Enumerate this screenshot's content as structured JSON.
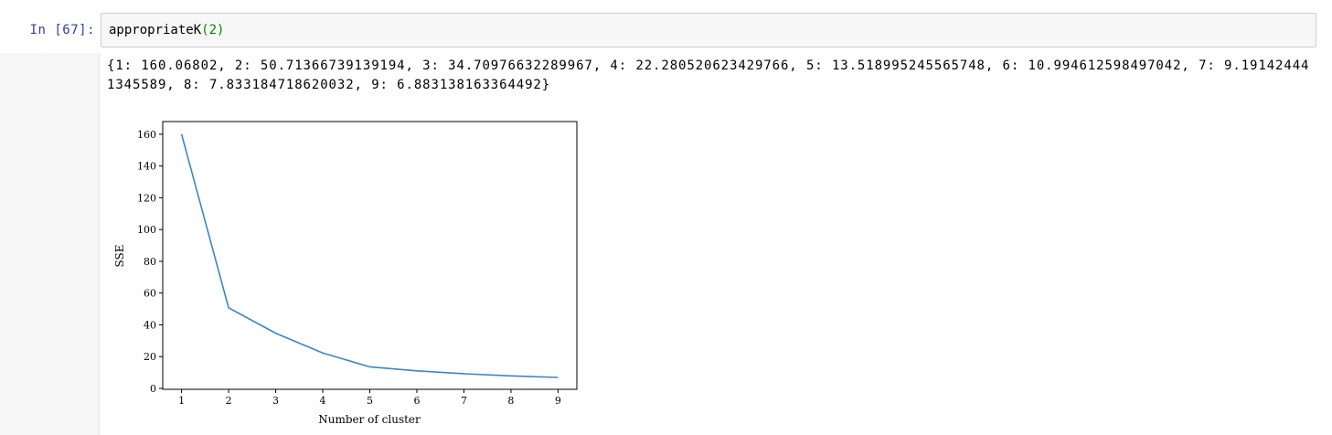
{
  "cell": {
    "prompt": "In [67]:",
    "code": {
      "func": "appropriateK",
      "open": "(",
      "arg": "2",
      "close": ")"
    }
  },
  "output": {
    "text": "{1: 160.06802, 2: 50.71366739139194, 3: 34.70976632289967, 4: 22.280520623429766, 5: 13.518995245565748, 6: 10.994612598497042, 7: 9.191424441345589, 8: 7.833184718620032, 9: 6.883138163364492}"
  },
  "chart_data": {
    "type": "line",
    "x": [
      1,
      2,
      3,
      4,
      5,
      6,
      7,
      8,
      9
    ],
    "series": [
      {
        "values": [
          160.06802,
          50.71366739139194,
          34.70976632289967,
          22.280520623429766,
          13.518995245565748,
          10.994612598497042,
          9.191424441345589,
          7.833184718620032,
          6.883138163364492
        ],
        "color": "#3a86c8"
      }
    ],
    "xlabel": "Number of cluster",
    "ylabel": "SSE",
    "xticks": [
      "1",
      "2",
      "3",
      "4",
      "5",
      "6",
      "7",
      "8",
      "9"
    ],
    "yticks": [
      "0",
      "20",
      "40",
      "60",
      "80",
      "100",
      "120",
      "140",
      "160"
    ],
    "xlim": [
      0.6,
      9.4
    ],
    "ylim": [
      -0.6,
      168
    ],
    "grid": false,
    "legend": false
  }
}
